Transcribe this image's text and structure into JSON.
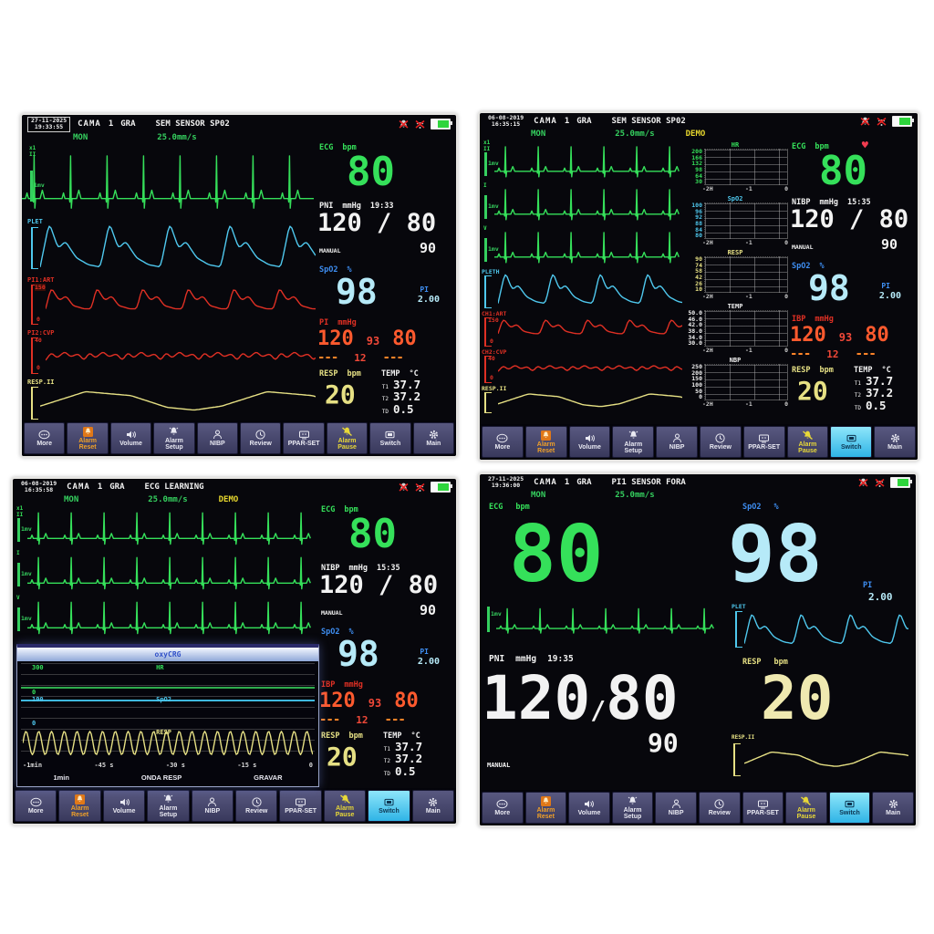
{
  "colors": {
    "green": "#35e05a",
    "cyan": "#4fc8ee",
    "blue": "#3e8ef2",
    "red": "#e03024",
    "orange": "#ff5a2e",
    "dash_orange": "#ff8428",
    "yellow": "#e6e084",
    "white": "#f2f2f2",
    "paleblue": "#b6eaf8",
    "selected": "#2fb4e6",
    "button_bg": "#39395c",
    "battery_green": "#2ed53c"
  },
  "toolbar_buttons": [
    {
      "label": "More",
      "icon": "more-icon",
      "accent": ""
    },
    {
      "label": "Alarm\nReset",
      "icon": "alarm-reset-icon",
      "accent": "orange"
    },
    {
      "label": "Volume",
      "icon": "volume-icon",
      "accent": ""
    },
    {
      "label": "Alarm\nSetup",
      "icon": "alarm-setup-icon",
      "accent": ""
    },
    {
      "label": "NIBP",
      "icon": "nibp-icon",
      "accent": ""
    },
    {
      "label": "Review",
      "icon": "review-icon",
      "accent": ""
    },
    {
      "label": "PPAR-SET",
      "icon": "ppar-set-icon",
      "accent": ""
    },
    {
      "label": "Alarm\nPause",
      "icon": "alarm-pause-icon",
      "accent": "yellow"
    },
    {
      "label": "Switch",
      "icon": "switch-icon",
      "accent": ""
    },
    {
      "label": "Main",
      "icon": "main-icon",
      "accent": ""
    }
  ],
  "status_icons": [
    "alarm-off-icon",
    "notify-off-icon",
    "battery-icon"
  ],
  "monitors": {
    "top_left": {
      "header": {
        "date": "27-11-2025",
        "time": "19:33:55",
        "bed_label": "CAMA",
        "bed_number": "1",
        "type": "GRA",
        "message": "SEM SENSOR SP02"
      },
      "mode": {
        "mon": "MON",
        "speed": "25.0mm/s",
        "demo": ""
      },
      "ecg_lead": {
        "gain": "x1",
        "lead": "II",
        "cal": "1mv"
      },
      "waves": {
        "pleth_label": "PLET",
        "art_label": "PI1:ART",
        "art_max": "150",
        "art_min": "0",
        "cvp_label": "PI2:CVP",
        "cvp_max": "40",
        "cvp_min": "0",
        "resp_label": "RESP.II"
      },
      "vitals": {
        "ecg": {
          "label": "ECG",
          "unit": "bpm",
          "value": "80",
          "heart": false
        },
        "nibp": {
          "label": "PNI",
          "unit": "mmHg",
          "time": "19:33",
          "sys": "120",
          "slash": "/",
          "dia": "80",
          "map": "90",
          "mode": "MANUAL"
        },
        "spo2": {
          "label": "SpO2",
          "unit": "%",
          "value": "98",
          "pi_label": "PI",
          "pi_value": "2.00"
        },
        "ibp": {
          "label": "PI",
          "unit": "mmHg",
          "sys": "120",
          "map": "93",
          "dia": "80",
          "d1": "---",
          "d2": "12",
          "d3": "---"
        },
        "resp": {
          "label": "RESP",
          "unit": "bpm",
          "value": "20"
        },
        "temp": {
          "label": "TEMP",
          "unit": "°C",
          "t1_label": "T1",
          "t1": "37.7",
          "t2_label": "T2",
          "t2": "37.2",
          "td_label": "TD",
          "td": "0.5"
        }
      },
      "selected_button": ""
    },
    "top_right": {
      "header": {
        "date": "06-08-2019",
        "time": "16:35:15",
        "bed_label": "CAMA",
        "bed_number": "1",
        "type": "GRA",
        "message": "SEM SENSOR SP02"
      },
      "mode": {
        "mon": "MON",
        "speed": "25.0mm/s",
        "demo": "DEMO"
      },
      "leads": [
        {
          "gain": "x1",
          "lead": "II",
          "cal": "1mv"
        },
        {
          "gain": "",
          "lead": "I",
          "cal": "1mv"
        },
        {
          "gain": "",
          "lead": "V",
          "cal": "1mv"
        }
      ],
      "waves": {
        "pleth_label": "PLETH",
        "art_label": "CH1:ART",
        "art_max": "150",
        "art_min": "0",
        "cvp_label": "CH2:CVP",
        "cvp_max": "40",
        "cvp_min": "0",
        "resp_label": "RESP.II"
      },
      "trends": {
        "xticks": [
          "-2H",
          "-1",
          "0"
        ],
        "charts": [
          {
            "title": "HR",
            "color": "green",
            "yticks": [
              "200",
              "166",
              "132",
              "98",
              "64",
              "30"
            ]
          },
          {
            "title": "SpO2",
            "color": "cyan",
            "yticks": [
              "100",
              "96",
              "92",
              "88",
              "84",
              "80"
            ]
          },
          {
            "title": "RESP",
            "color": "yellow",
            "yticks": [
              "90",
              "74",
              "58",
              "42",
              "26",
              "10"
            ]
          },
          {
            "title": "TEMP",
            "color": "white",
            "yticks": [
              "50.0",
              "46.0",
              "42.0",
              "38.0",
              "34.0",
              "30.0"
            ]
          },
          {
            "title": "NBP",
            "color": "white",
            "yticks": [
              "250",
              "200",
              "150",
              "100",
              "50",
              "0"
            ]
          }
        ]
      },
      "vitals": {
        "ecg": {
          "label": "ECG",
          "unit": "bpm",
          "value": "80",
          "heart": true
        },
        "nibp": {
          "label": "NIBP",
          "unit": "mmHg",
          "time": "15:35",
          "sys": "120",
          "slash": "/",
          "dia": "80",
          "map": "90",
          "mode": "MANUAL"
        },
        "spo2": {
          "label": "SpO2",
          "unit": "%",
          "value": "98",
          "pi_label": "PI",
          "pi_value": "2.00"
        },
        "ibp": {
          "label": "IBP",
          "unit": "mmHg",
          "sys": "120",
          "map": "93",
          "dia": "80",
          "d1": "---",
          "d2": "12",
          "d3": "---"
        },
        "resp": {
          "label": "RESP",
          "unit": "bpm",
          "value": "20"
        },
        "temp": {
          "label": "TEMP",
          "unit": "°C",
          "t1_label": "T1",
          "t1": "37.7",
          "t2_label": "T2",
          "t2": "37.2",
          "td_label": "TD",
          "td": "0.5"
        }
      },
      "selected_button": "Switch"
    },
    "bottom_left": {
      "header": {
        "date": "06-08-2019",
        "time": "16:35:58",
        "bed_label": "CAMA",
        "bed_number": "1",
        "type": "GRA",
        "message": "ECG LEARNING"
      },
      "mode": {
        "mon": "MON",
        "speed": "25.0mm/s",
        "demo": "DEMO"
      },
      "leads": [
        {
          "gain": "x1",
          "lead": "II",
          "cal": "1mv"
        },
        {
          "gain": "",
          "lead": "I",
          "cal": "1mv"
        },
        {
          "gain": "",
          "lead": "V",
          "cal": "1mv"
        }
      ],
      "popup": {
        "title": "oxyCRG",
        "hr_label": "HR",
        "hr_max": "300",
        "hr_min": "0",
        "spo2_label": "SpO2",
        "spo2_max": "100",
        "spo2_min": "0",
        "resp_label": "RESP",
        "xticks": [
          "-1min",
          "-45 s",
          "-30 s",
          "-15 s",
          "0"
        ],
        "buttons": [
          "1min",
          "ONDA RESP",
          "GRAVAR"
        ]
      },
      "vitals": {
        "ecg": {
          "label": "ECG",
          "unit": "bpm",
          "value": "80",
          "heart": false
        },
        "nibp": {
          "label": "NIBP",
          "unit": "mmHg",
          "time": "15:35",
          "sys": "120",
          "slash": "/",
          "dia": "80",
          "map": "90",
          "mode": "MANUAL"
        },
        "spo2": {
          "label": "SpO2",
          "unit": "%",
          "value": "98",
          "pi_label": "PI",
          "pi_value": "2.00"
        },
        "ibp": {
          "label": "IBP",
          "unit": "mmHg",
          "sys": "120",
          "map": "93",
          "dia": "80",
          "d1": "---",
          "d2": "12",
          "d3": "---"
        },
        "resp": {
          "label": "RESP",
          "unit": "bpm",
          "value": "20"
        },
        "temp": {
          "label": "TEMP",
          "unit": "°C",
          "t1_label": "T1",
          "t1": "37.7",
          "t2_label": "T2",
          "t2": "37.2",
          "td_label": "TD",
          "td": "0.5"
        }
      },
      "selected_button": "Switch"
    },
    "bottom_right": {
      "header": {
        "date": "27-11-2025",
        "time": "19:36:00",
        "bed_label": "CAMA",
        "bed_number": "1",
        "type": "GRA",
        "message": "PI1 SENSOR FORA"
      },
      "mode": {
        "mon": "MON",
        "speed": "25.0mm/s",
        "demo": ""
      },
      "big": {
        "ecg_label": "ECG",
        "ecg_unit": "bpm",
        "ecg_value": "80",
        "ecg_cal": "1mv",
        "spo2_label": "SpO2",
        "spo2_unit": "%",
        "spo2_value": "98",
        "pi_label": "PI",
        "pi_value": "2.00",
        "plet_label": "PLET",
        "pni_label": "PNI",
        "pni_unit": "mmHg",
        "pni_time": "19:35",
        "pni_sys": "120",
        "pni_slash": "/",
        "pni_dia": "80",
        "pni_map": "90",
        "pni_mode": "MANUAL",
        "resp_label": "RESP",
        "resp_unit": "bpm",
        "resp_value": "20",
        "resp_wave_label": "RESP.II"
      },
      "selected_button": "Switch"
    }
  }
}
